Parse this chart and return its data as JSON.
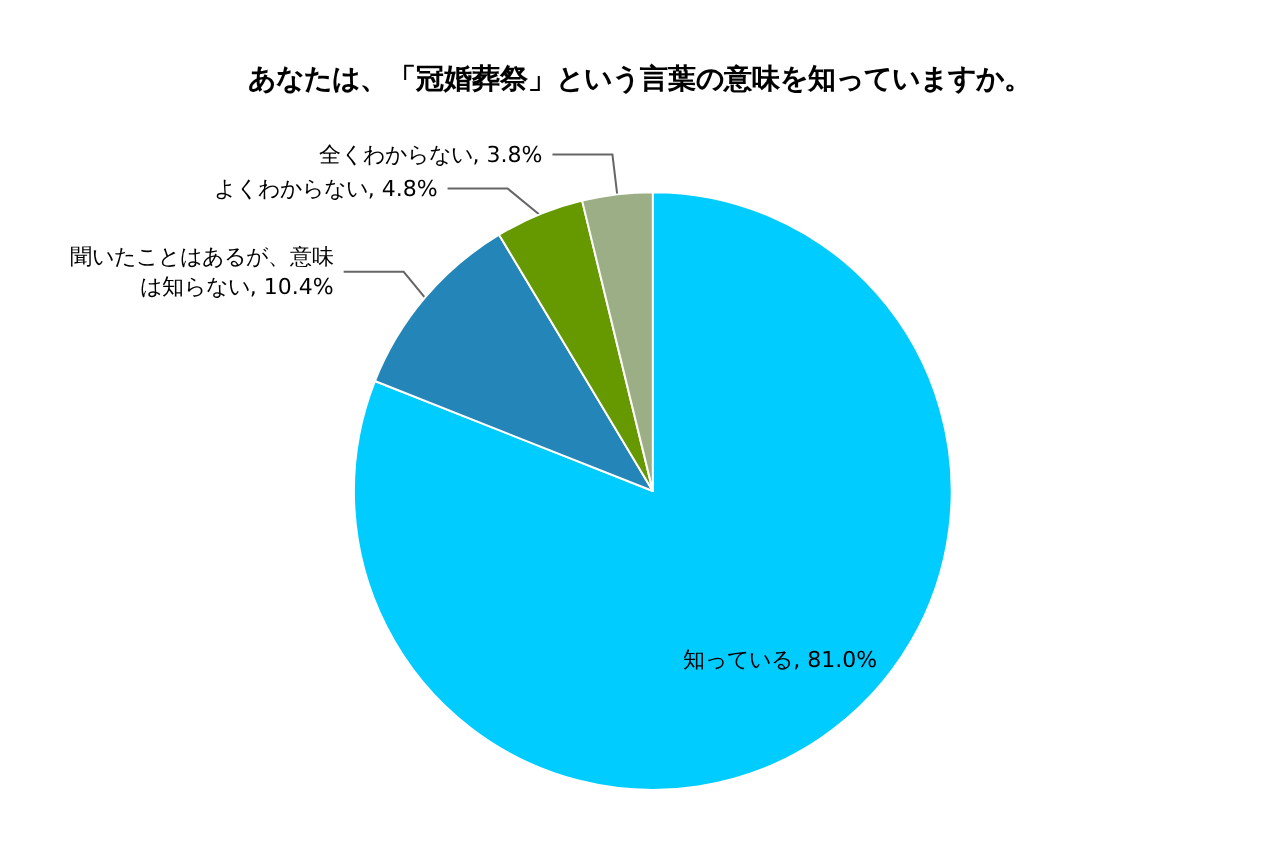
{
  "chart_data": {
    "type": "pie",
    "title": "あなたは、「冠婚葬祭」という言葉の意味を知っていますか。",
    "categories": [
      "知っている",
      "聞いたことはあるが、意味は知らない",
      "よくわからない",
      "全くわからない"
    ],
    "values": [
      81.0,
      10.4,
      4.8,
      3.8
    ],
    "value_labels": [
      "81.0%",
      "10.4%",
      "4.8%",
      "3.8%"
    ],
    "colors": [
      "#00ccff",
      "#2385b8",
      "#669900",
      "#9bae85"
    ],
    "legend": false
  }
}
